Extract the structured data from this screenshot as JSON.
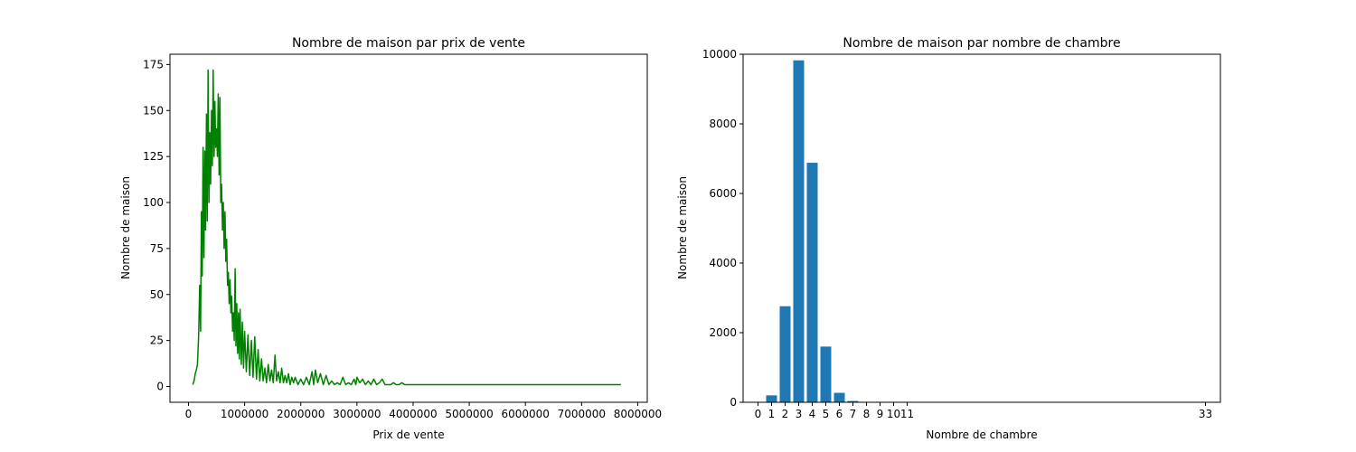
{
  "chart_data": [
    {
      "type": "line",
      "title": "Nombre de maison par prix de vente",
      "xlabel": "Prix de vente",
      "ylabel": "Nombre de maison",
      "xlim": [
        -330000,
        8170000
      ],
      "ylim": [
        -8.6,
        180.6
      ],
      "x_ticks": [
        0,
        1000000,
        2000000,
        3000000,
        4000000,
        5000000,
        6000000,
        7000000,
        8000000
      ],
      "x_tick_labels": [
        "0",
        "1000000",
        "2000000",
        "3000000",
        "4000000",
        "5000000",
        "6000000",
        "7000000",
        "8000000"
      ],
      "y_ticks": [
        0,
        25,
        50,
        75,
        100,
        125,
        150,
        175
      ],
      "y_tick_labels": [
        "0",
        "25",
        "50",
        "75",
        "100",
        "125",
        "150",
        "175"
      ],
      "color": "#008000",
      "grid": false,
      "series": [
        {
          "points": [
            [
              75000,
              1
            ],
            [
              100000,
              3
            ],
            [
              120000,
              7
            ],
            [
              140000,
              9
            ],
            [
              160000,
              12
            ],
            [
              180000,
              27
            ],
            [
              200000,
              55
            ],
            [
              215000,
              30
            ],
            [
              230000,
              95
            ],
            [
              245000,
              60
            ],
            [
              260000,
              130
            ],
            [
              275000,
              70
            ],
            [
              290000,
              128
            ],
            [
              305000,
              85
            ],
            [
              320000,
              148
            ],
            [
              335000,
              90
            ],
            [
              350000,
              172
            ],
            [
              365000,
              100
            ],
            [
              380000,
              138
            ],
            [
              395000,
              110
            ],
            [
              410000,
              150
            ],
            [
              425000,
              120
            ],
            [
              440000,
              172
            ],
            [
              455000,
              125
            ],
            [
              470000,
              155
            ],
            [
              485000,
              130
            ],
            [
              500000,
              140
            ],
            [
              515000,
              125
            ],
            [
              530000,
              159
            ],
            [
              545000,
              115
            ],
            [
              560000,
              157
            ],
            [
              575000,
              100
            ],
            [
              590000,
              110
            ],
            [
              605000,
              85
            ],
            [
              620000,
              100
            ],
            [
              635000,
              75
            ],
            [
              650000,
              95
            ],
            [
              665000,
              68
            ],
            [
              680000,
              80
            ],
            [
              695000,
              55
            ],
            [
              710000,
              62
            ],
            [
              725000,
              45
            ],
            [
              740000,
              58
            ],
            [
              755000,
              40
            ],
            [
              770000,
              49
            ],
            [
              785000,
              30
            ],
            [
              800000,
              40
            ],
            [
              815000,
              25
            ],
            [
              830000,
              64
            ],
            [
              845000,
              22
            ],
            [
              860000,
              45
            ],
            [
              875000,
              18
            ],
            [
              890000,
              40
            ],
            [
              905000,
              15
            ],
            [
              920000,
              42
            ],
            [
              940000,
              12
            ],
            [
              960000,
              35
            ],
            [
              980000,
              10
            ],
            [
              1000000,
              30
            ],
            [
              1030000,
              8
            ],
            [
              1060000,
              28
            ],
            [
              1090000,
              6
            ],
            [
              1120000,
              25
            ],
            [
              1150000,
              5
            ],
            [
              1180000,
              27
            ],
            [
              1210000,
              4
            ],
            [
              1240000,
              20
            ],
            [
              1270000,
              3
            ],
            [
              1300000,
              15
            ],
            [
              1330000,
              3
            ],
            [
              1360000,
              10
            ],
            [
              1390000,
              2
            ],
            [
              1420000,
              12
            ],
            [
              1450000,
              3
            ],
            [
              1480000,
              9
            ],
            [
              1510000,
              2
            ],
            [
              1540000,
              17
            ],
            [
              1570000,
              3
            ],
            [
              1600000,
              8
            ],
            [
              1630000,
              2
            ],
            [
              1660000,
              10
            ],
            [
              1690000,
              2
            ],
            [
              1720000,
              6
            ],
            [
              1750000,
              2
            ],
            [
              1780000,
              7
            ],
            [
              1810000,
              1
            ],
            [
              1840000,
              5
            ],
            [
              1870000,
              2
            ],
            [
              1900000,
              5
            ],
            [
              1950000,
              1
            ],
            [
              2000000,
              4
            ],
            [
              2050000,
              1
            ],
            [
              2100000,
              5
            ],
            [
              2150000,
              1
            ],
            [
              2200000,
              8
            ],
            [
              2230000,
              1
            ],
            [
              2260000,
              9
            ],
            [
              2300000,
              2
            ],
            [
              2350000,
              7
            ],
            [
              2400000,
              1
            ],
            [
              2450000,
              6
            ],
            [
              2500000,
              1
            ],
            [
              2550000,
              3
            ],
            [
              2600000,
              1
            ],
            [
              2650000,
              2
            ],
            [
              2700000,
              1
            ],
            [
              2750000,
              5
            ],
            [
              2800000,
              1
            ],
            [
              2850000,
              2
            ],
            [
              2900000,
              1
            ],
            [
              2950000,
              4
            ],
            [
              2980000,
              1
            ],
            [
              3000000,
              5
            ],
            [
              3050000,
              2
            ],
            [
              3100000,
              4
            ],
            [
              3150000,
              1
            ],
            [
              3200000,
              3
            ],
            [
              3250000,
              1
            ],
            [
              3300000,
              4
            ],
            [
              3350000,
              1
            ],
            [
              3400000,
              2
            ],
            [
              3450000,
              4
            ],
            [
              3500000,
              1
            ],
            [
              3600000,
              1
            ],
            [
              3650000,
              2
            ],
            [
              3700000,
              1
            ],
            [
              3750000,
              1
            ],
            [
              3800000,
              2
            ],
            [
              3850000,
              1
            ],
            [
              4000000,
              1
            ],
            [
              5000000,
              1
            ],
            [
              6000000,
              1
            ],
            [
              7000000,
              1
            ],
            [
              7700000,
              1
            ]
          ]
        }
      ]
    },
    {
      "type": "bar",
      "title": "Nombre de maison par nombre de chambre",
      "xlabel": "Nombre de chambre",
      "ylabel": "Nombre de maison",
      "xlim": [
        -1.1,
        34.1
      ],
      "ylim": [
        0,
        10000
      ],
      "x_ticks": [
        0,
        1,
        2,
        3,
        4,
        5,
        6,
        7,
        8,
        9,
        10,
        11,
        33
      ],
      "x_tick_labels": [
        "0",
        "1",
        "2",
        "3",
        "4",
        "5",
        "6",
        "7",
        "8",
        "9",
        "10",
        "11",
        "33"
      ],
      "y_ticks": [
        0,
        2000,
        4000,
        6000,
        8000,
        10000
      ],
      "y_tick_labels": [
        "0",
        "2000",
        "4000",
        "6000",
        "8000",
        "10000"
      ],
      "color": "#1f77b4",
      "grid": false,
      "categories": [
        0,
        1,
        2,
        3,
        4,
        5,
        6,
        7,
        8,
        9,
        10,
        11,
        33
      ],
      "values": [
        13,
        199,
        2760,
        9824,
        6882,
        1601,
        272,
        38,
        13,
        6,
        3,
        1,
        1
      ]
    }
  ]
}
